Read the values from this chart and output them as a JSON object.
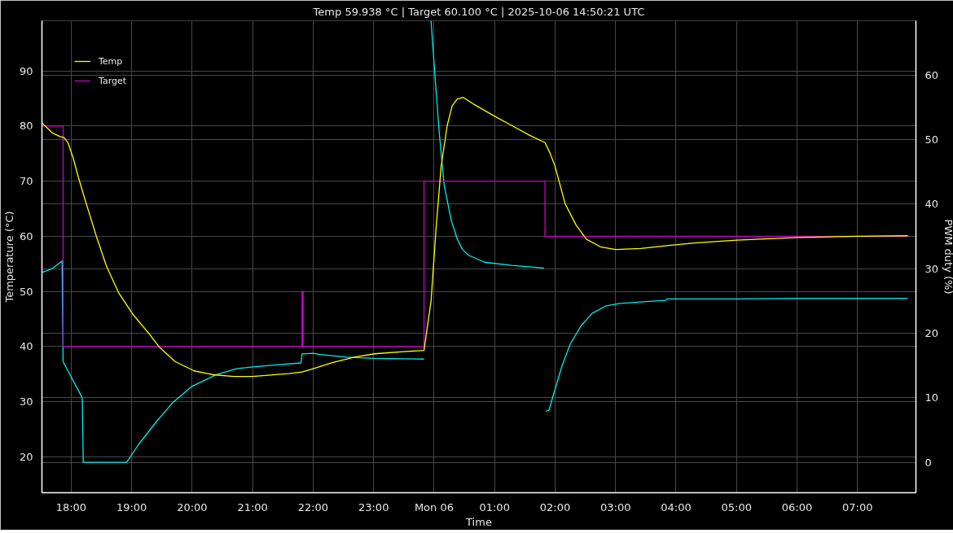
{
  "chart_data": {
    "type": "line",
    "title": "Temp 59.938 °C | Target 60.100 °C | 2025-10-06 14:50:21 UTC",
    "xlabel": "Time",
    "ylabel": "Temperature (°C)",
    "y2label": "PWM duty (%)",
    "xlim": [
      "2025-10-05T17:31",
      "2025-10-06T07:58"
    ],
    "ylim": [
      13.5,
      99.1
    ],
    "y2lim": [
      -4.7,
      68.4
    ],
    "xticks": [
      {
        "value": "2025-10-05T18:00",
        "label": "18:00"
      },
      {
        "value": "2025-10-05T19:00",
        "label": "19:00"
      },
      {
        "value": "2025-10-05T20:00",
        "label": "20:00"
      },
      {
        "value": "2025-10-05T21:00",
        "label": "21:00"
      },
      {
        "value": "2025-10-05T22:00",
        "label": "22:00"
      },
      {
        "value": "2025-10-05T23:00",
        "label": "23:00"
      },
      {
        "value": "2025-10-06T00:00",
        "label": "Mon 06"
      },
      {
        "value": "2025-10-06T01:00",
        "label": "01:00"
      },
      {
        "value": "2025-10-06T02:00",
        "label": "02:00"
      },
      {
        "value": "2025-10-06T03:00",
        "label": "03:00"
      },
      {
        "value": "2025-10-06T04:00",
        "label": "04:00"
      },
      {
        "value": "2025-10-06T05:00",
        "label": "05:00"
      },
      {
        "value": "2025-10-06T06:00",
        "label": "06:00"
      },
      {
        "value": "2025-10-06T07:00",
        "label": "07:00"
      }
    ],
    "yticks": [
      20,
      30,
      40,
      50,
      60,
      70,
      80,
      90
    ],
    "y2ticks": [
      0,
      10,
      20,
      30,
      40,
      50,
      60
    ],
    "grid": true,
    "legend": "top left",
    "series": [
      {
        "name": "Temp",
        "color": "#ffff00",
        "x": [
          "2025-10-05T17:31",
          "2025-10-05T17:41",
          "2025-10-05T17:49",
          "2025-10-05T17:53",
          "2025-10-05T17:57",
          "2025-10-05T18:02",
          "2025-10-05T18:07",
          "2025-10-05T18:15",
          "2025-10-05T18:25",
          "2025-10-05T18:35",
          "2025-10-05T18:47",
          "2025-10-05T19:01",
          "2025-10-05T19:17",
          "2025-10-05T19:27",
          "2025-10-05T19:43",
          "2025-10-05T20:02",
          "2025-10-05T20:21",
          "2025-10-05T20:41",
          "2025-10-05T21:00",
          "2025-10-05T21:36",
          "2025-10-05T21:49",
          "2025-10-05T22:00",
          "2025-10-05T22:19",
          "2025-10-05T22:41",
          "2025-10-05T23:01",
          "2025-10-05T23:30",
          "2025-10-05T23:50",
          "2025-10-05T23:57",
          "2025-10-06T00:02",
          "2025-10-06T00:07",
          "2025-10-06T00:13",
          "2025-10-06T00:18",
          "2025-10-06T00:23",
          "2025-10-06T00:29",
          "2025-10-06T00:39",
          "2025-10-06T00:58",
          "2025-10-06T01:17",
          "2025-10-06T01:35",
          "2025-10-06T01:50",
          "2025-10-06T01:55",
          "2025-10-06T02:00",
          "2025-10-06T02:10",
          "2025-10-06T02:21",
          "2025-10-06T02:31",
          "2025-10-06T02:45",
          "2025-10-06T03:00",
          "2025-10-06T03:25",
          "2025-10-06T03:51",
          "2025-10-06T04:18",
          "2025-10-06T05:00",
          "2025-10-06T06:00",
          "2025-10-06T07:00",
          "2025-10-06T07:50"
        ],
        "values": [
          80.6,
          78.8,
          78.1,
          77.9,
          76.9,
          74.2,
          70.8,
          65.9,
          60.0,
          54.6,
          49.8,
          45.9,
          42.4,
          40.0,
          37.3,
          35.6,
          34.9,
          34.6,
          34.6,
          35.1,
          35.4,
          36.0,
          37.1,
          38.1,
          38.7,
          39.1,
          39.3,
          48.3,
          61.5,
          72.7,
          80.1,
          83.7,
          84.9,
          85.2,
          84.0,
          82.0,
          80.1,
          78.3,
          77.0,
          75.1,
          72.7,
          65.9,
          62.0,
          59.5,
          58.1,
          57.6,
          57.8,
          58.3,
          58.8,
          59.3,
          59.8,
          60.0,
          60.1
        ]
      },
      {
        "name": "Target",
        "type": "step",
        "color": "#cc00cc",
        "x": [
          "2025-10-05T17:31",
          "2025-10-05T17:52",
          "2025-10-05T21:49",
          "2025-10-05T21:50",
          "2025-10-05T23:50",
          "2025-10-06T01:50",
          "2025-10-06T07:50"
        ],
        "values": [
          80,
          40,
          50,
          40,
          70,
          60,
          60
        ]
      },
      {
        "color": "#00eeee",
        "axis": "y2",
        "x": [
          "2025-10-05T17:31",
          "2025-10-05T17:41",
          "2025-10-05T17:51",
          "2025-10-05T17:52",
          "2025-10-05T18:11",
          "2025-10-05T18:12",
          "2025-10-05T18:55",
          "2025-10-05T19:07",
          "2025-10-05T19:24",
          "2025-10-05T19:41",
          "2025-10-05T20:00",
          "2025-10-05T20:24",
          "2025-10-05T20:44",
          "2025-10-05T21:00",
          "2025-10-05T21:24",
          "2025-10-05T21:48",
          "2025-10-05T21:49",
          "2025-10-05T22:00",
          "2025-10-05T22:07",
          "2025-10-05T22:33",
          "2025-10-05T23:01",
          "2025-10-05T23:50",
          "2025-10-05T23:54",
          "2025-10-05T23:57",
          "2025-10-06T00:01",
          "2025-10-06T00:05",
          "2025-10-06T00:10",
          "2025-10-06T00:17",
          "2025-10-06T00:23",
          "2025-10-06T00:28",
          "2025-10-06T00:34",
          "2025-10-06T00:50",
          "2025-10-06T01:17",
          "2025-10-06T01:49",
          "2025-10-06T01:50",
          "2025-10-06T01:51",
          "2025-10-06T01:54",
          "2025-10-06T01:59",
          "2025-10-06T02:07",
          "2025-10-06T02:15",
          "2025-10-06T02:26",
          "2025-10-06T02:37",
          "2025-10-06T02:50",
          "2025-10-06T03:03",
          "2025-10-06T03:30",
          "2025-10-06T03:50",
          "2025-10-06T03:51",
          "2025-10-06T05:00",
          "2025-10-06T06:00",
          "2025-10-06T07:50"
        ],
        "values": [
          29.4,
          30.0,
          31.2,
          15.6,
          10.0,
          0,
          0,
          2.8,
          6.2,
          9.3,
          11.8,
          13.6,
          14.5,
          14.8,
          15.1,
          15.4,
          16.8,
          16.9,
          16.7,
          16.3,
          16.1,
          16.0,
          null,
          68.4,
          59.6,
          51.3,
          42.9,
          37.5,
          34.6,
          33.0,
          32.1,
          31.0,
          30.5,
          30.1,
          null,
          7.9,
          8.1,
          10.8,
          15.0,
          18.3,
          21.2,
          23.1,
          24.2,
          24.6,
          24.9,
          25.1,
          25.3,
          25.3,
          25.4,
          25.4
        ]
      }
    ]
  }
}
